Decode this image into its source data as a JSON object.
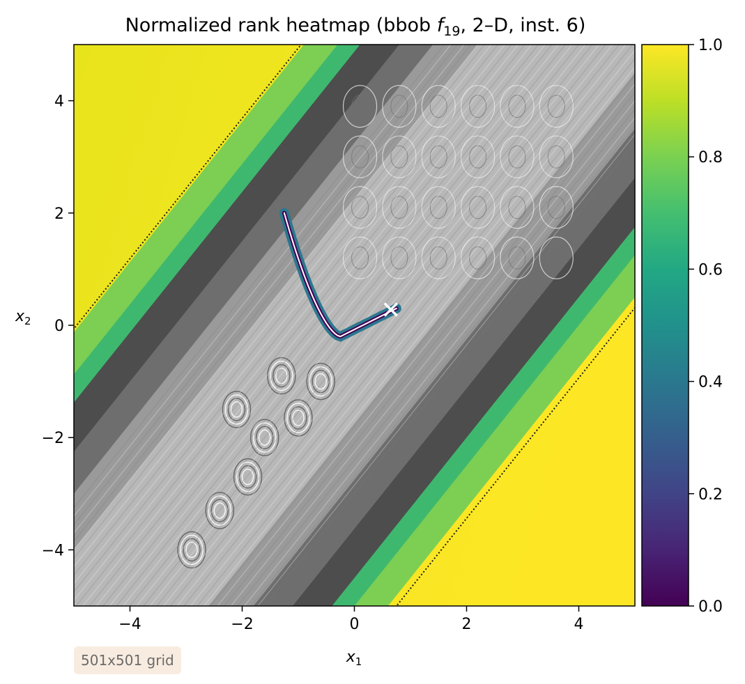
{
  "chart_data": {
    "type": "heatmap",
    "title": {
      "prefix": "Normalized rank heatmap (bbob ",
      "func": "f",
      "func_sub": "19",
      "suffix": ", 2–D, inst. 6)"
    },
    "xlabel": {
      "var": "x",
      "sub": "1"
    },
    "ylabel": {
      "var": "x",
      "sub": "2"
    },
    "xlim": [
      -5,
      5
    ],
    "ylim": [
      -5,
      5
    ],
    "xticks": [
      -4,
      -2,
      0,
      2,
      4
    ],
    "xtick_labels": [
      "−4",
      "−2",
      "0",
      "2",
      "4"
    ],
    "yticks": [
      -4,
      -2,
      0,
      2,
      4
    ],
    "ytick_labels": [
      "−4",
      "−2",
      "0",
      "2",
      "4"
    ],
    "colorbar": {
      "range": [
        0,
        1
      ],
      "ticks": [
        0.0,
        0.2,
        0.4,
        0.6,
        0.8,
        1.0
      ],
      "tick_labels": [
        "0.0",
        "0.2",
        "0.4",
        "0.6",
        "0.8",
        "1.0"
      ],
      "colormap": "viridis"
    },
    "marker": {
      "x": 0.65,
      "y": 0.28,
      "symbol": "x",
      "color": "#ffffff"
    },
    "grid": false
  },
  "annotation": {
    "grid_note": "501x501 grid"
  },
  "colors": {
    "viridis_low": "#440154",
    "viridis_mid": "#21918c",
    "viridis_high": "#fde725",
    "gray_band": "#8a8a8a"
  }
}
